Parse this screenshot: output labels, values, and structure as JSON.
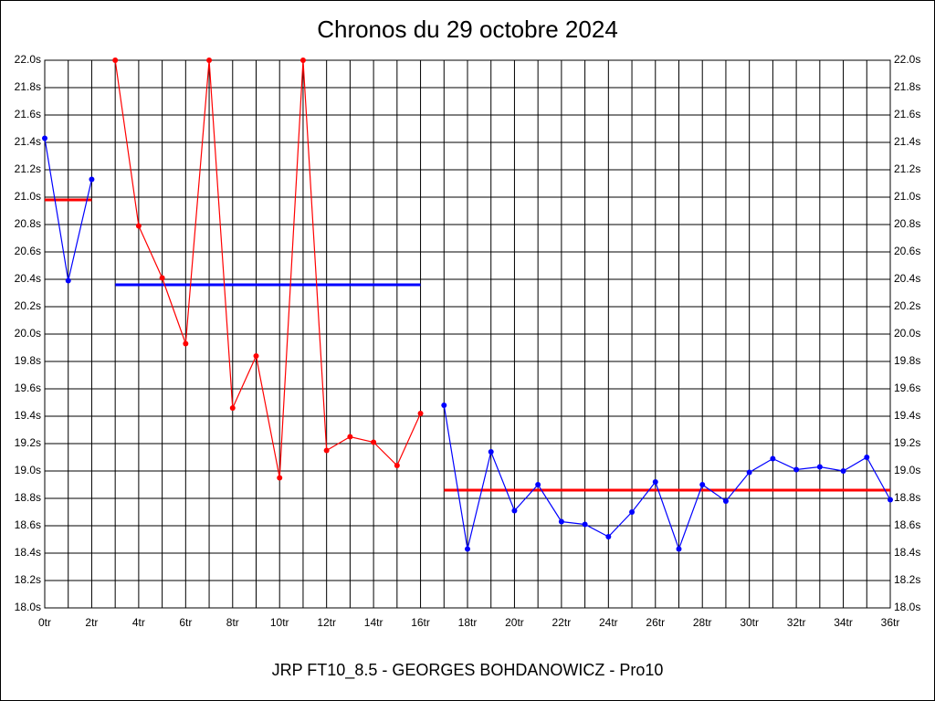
{
  "chart_data": {
    "type": "line",
    "title": "Chronos du 29 octobre 2024",
    "xlabel": "JRP FT10_8.5 - GEORGES BOHDANOWICZ - Pro10",
    "x": [
      0,
      1,
      2,
      3,
      4,
      5,
      6,
      7,
      8,
      9,
      10,
      11,
      12,
      13,
      14,
      15,
      16,
      17,
      18,
      19,
      20,
      21,
      22,
      23,
      24,
      25,
      26,
      27,
      28,
      29,
      30,
      31,
      32,
      33,
      34,
      35,
      36
    ],
    "series": [
      {
        "color": "#0000ff",
        "values": [
          21.43,
          20.39,
          21.13,
          null,
          null,
          null,
          null,
          null,
          null,
          null,
          null,
          null,
          null,
          null,
          null,
          null,
          null,
          null,
          null,
          null,
          null,
          null,
          null,
          null,
          null,
          null,
          null,
          null,
          null,
          null,
          null,
          null,
          null,
          null,
          null,
          null,
          null
        ]
      },
      {
        "color": "#ff0000",
        "values": [
          null,
          null,
          null,
          22.0,
          20.79,
          20.41,
          19.93,
          22.0,
          19.46,
          19.84,
          18.95,
          22.0,
          19.15,
          19.25,
          19.21,
          19.04,
          19.42,
          null,
          null,
          null,
          null,
          null,
          null,
          null,
          null,
          null,
          null,
          null,
          null,
          null,
          null,
          null,
          null,
          null,
          null,
          null,
          null
        ]
      },
      {
        "color": "#0000ff",
        "values": [
          null,
          null,
          null,
          null,
          null,
          null,
          null,
          null,
          null,
          null,
          null,
          null,
          null,
          null,
          null,
          null,
          null,
          19.48,
          18.43,
          19.14,
          18.71,
          18.9,
          18.63,
          18.61,
          18.52,
          18.7,
          18.92,
          18.43,
          18.9,
          18.78,
          18.99,
          19.09,
          19.01,
          19.03,
          19.0,
          19.1,
          18.79
        ]
      }
    ],
    "averages": [
      {
        "from": 0,
        "to": 2,
        "value": 20.98,
        "color": "#ff0000"
      },
      {
        "from": 3,
        "to": 16,
        "value": 20.36,
        "color": "#0000ff"
      },
      {
        "from": 17,
        "to": 36,
        "value": 18.86,
        "color": "#ff0000"
      }
    ],
    "xlim": [
      0,
      36
    ],
    "xticks": [
      {
        "value": 0,
        "label": "0tr"
      },
      {
        "value": 2,
        "label": "2tr"
      },
      {
        "value": 4,
        "label": "4tr"
      },
      {
        "value": 6,
        "label": "6tr"
      },
      {
        "value": 8,
        "label": "8tr"
      },
      {
        "value": 10,
        "label": "10tr"
      },
      {
        "value": 12,
        "label": "12tr"
      },
      {
        "value": 14,
        "label": "14tr"
      },
      {
        "value": 16,
        "label": "16tr"
      },
      {
        "value": 18,
        "label": "18tr"
      },
      {
        "value": 20,
        "label": "20tr"
      },
      {
        "value": 22,
        "label": "22tr"
      },
      {
        "value": 24,
        "label": "24tr"
      },
      {
        "value": 26,
        "label": "26tr"
      },
      {
        "value": 28,
        "label": "28tr"
      },
      {
        "value": 30,
        "label": "30tr"
      },
      {
        "value": 32,
        "label": "32tr"
      },
      {
        "value": 34,
        "label": "34tr"
      },
      {
        "value": 36,
        "label": "36tr"
      }
    ],
    "xminorticks": [
      1,
      3,
      5,
      7,
      9,
      11,
      13,
      15,
      17,
      19,
      21,
      23,
      25,
      27,
      29,
      31,
      33,
      35
    ],
    "ylim": [
      18.0,
      22.0
    ],
    "yticks": [
      {
        "value": 18.0,
        "label": "18.0s"
      },
      {
        "value": 18.2,
        "label": "18.2s"
      },
      {
        "value": 18.4,
        "label": "18.4s"
      },
      {
        "value": 18.6,
        "label": "18.6s"
      },
      {
        "value": 18.8,
        "label": "18.8s"
      },
      {
        "value": 19.0,
        "label": "19.0s"
      },
      {
        "value": 19.2,
        "label": "19.2s"
      },
      {
        "value": 19.4,
        "label": "19.4s"
      },
      {
        "value": 19.6,
        "label": "19.6s"
      },
      {
        "value": 19.8,
        "label": "19.8s"
      },
      {
        "value": 20.0,
        "label": "20.0s"
      },
      {
        "value": 20.2,
        "label": "20.2s"
      },
      {
        "value": 20.4,
        "label": "20.4s"
      },
      {
        "value": 20.6,
        "label": "20.6s"
      },
      {
        "value": 20.8,
        "label": "20.8s"
      },
      {
        "value": 21.0,
        "label": "21.0s"
      },
      {
        "value": 21.2,
        "label": "21.2s"
      },
      {
        "value": 21.4,
        "label": "21.4s"
      },
      {
        "value": 21.6,
        "label": "21.6s"
      },
      {
        "value": 21.8,
        "label": "21.8s"
      },
      {
        "value": 22.0,
        "label": "22.0s"
      }
    ],
    "grid": true
  }
}
